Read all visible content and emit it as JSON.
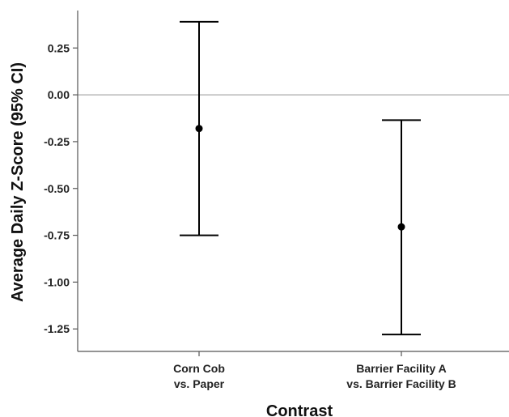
{
  "chart_data": {
    "type": "errorbar",
    "xlabel": "Contrast",
    "ylabel": "Average Daily Z-Score (95% CI)",
    "ylim": [
      -1.37,
      0.45
    ],
    "yticks": [
      0.25,
      0.0,
      -0.25,
      -0.5,
      -0.75,
      -1.0,
      -1.25
    ],
    "ytick_labels": [
      "0.25",
      "0.00",
      "-0.25",
      "-0.50",
      "-0.75",
      "-1.00",
      "-1.25"
    ],
    "reference_line": 0,
    "grid": false,
    "categories": [
      [
        "Corn Cob",
        "vs. Paper"
      ],
      [
        "Barrier Facility A",
        "vs. Barrier Facility B"
      ]
    ],
    "points": [
      {
        "estimate": -0.18,
        "lower": -0.75,
        "upper": 0.39
      },
      {
        "estimate": -0.705,
        "lower": -1.28,
        "upper": -0.135
      }
    ],
    "colors": {
      "marks": "#000000",
      "axis": "#555555",
      "reference_line": "#aaaaaa",
      "text": "#222222"
    }
  }
}
